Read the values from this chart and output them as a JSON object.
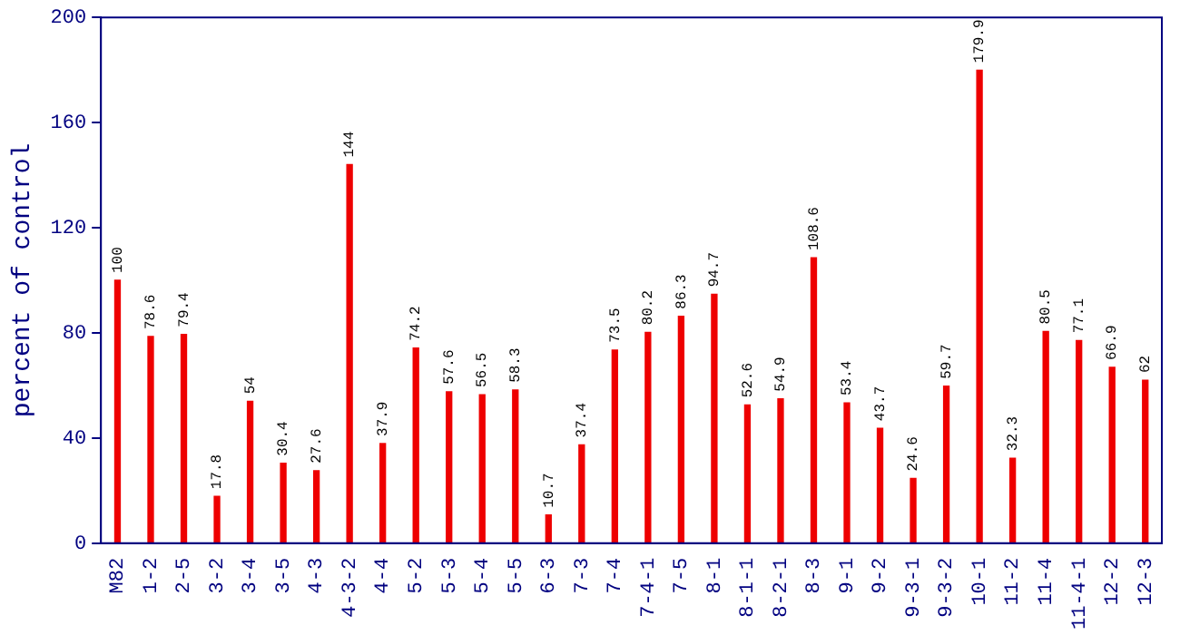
{
  "chart_data": {
    "type": "bar",
    "ylabel": "percent of control",
    "categories": [
      "M82",
      "1-2",
      "2-5",
      "3-2",
      "3-4",
      "3-5",
      "4-3",
      "4-3-2",
      "4-4",
      "5-2",
      "5-3",
      "5-4",
      "5-5",
      "6-3",
      "7-3",
      "7-4",
      "7-4-1",
      "7-5",
      "8-1",
      "8-1-1",
      "8-2-1",
      "8-3",
      "9-1",
      "9-2",
      "9-3-1",
      "9-3-2",
      "10-1",
      "11-2",
      "11-4",
      "11-4-1",
      "12-2",
      "12-3"
    ],
    "values": [
      100,
      78.6,
      79.4,
      17.8,
      54,
      30.4,
      27.6,
      144,
      37.9,
      74.2,
      57.6,
      56.5,
      58.3,
      10.7,
      37.4,
      73.5,
      80.2,
      86.3,
      94.7,
      52.6,
      54.9,
      108.6,
      53.4,
      43.7,
      24.6,
      59.7,
      179.9,
      32.3,
      80.5,
      77.1,
      66.9,
      62
    ],
    "color": "#ee0000",
    "ylim": [
      0,
      200
    ],
    "yticks": [
      0,
      40,
      80,
      120,
      160,
      200
    ],
    "grid": false,
    "legend": false,
    "data_labels": true
  }
}
